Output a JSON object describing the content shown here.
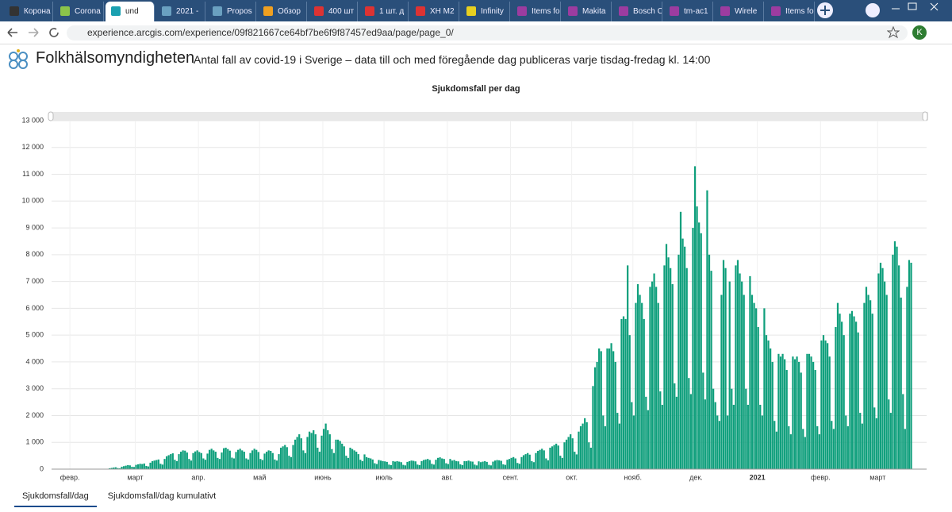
{
  "browser": {
    "tabs": [
      "Корона",
      "Corona",
      "und",
      "2021 -",
      "Propos",
      "Обзор",
      "400 шт",
      "1 шт. д",
      "XH M2",
      "Infinity",
      "Items fo",
      "Makita",
      "Bosch C",
      "tm-ac1",
      "Wirele",
      "Items fo"
    ],
    "url": "experience.arcgis.com/experience/09f821667ce64bf7be6f9f87457ed9aa/page/page_0/",
    "avatar": "K"
  },
  "header": {
    "title": "Folkhälsomyndigheten",
    "subtitle": "Antal fall av covid-19 i Sverige – data till och med föregående dag publiceras varje tisdag-fredag kl. 14:00"
  },
  "chart_data": {
    "type": "bar",
    "title": "Sjukdomsfall per dag",
    "color": "#0f9f7c",
    "grid": true,
    "values": [
      0,
      0,
      0,
      0,
      0,
      1,
      0,
      0,
      0,
      0,
      0,
      0,
      0,
      0,
      0,
      0,
      0,
      0,
      0,
      0,
      1,
      1,
      2,
      3,
      4,
      5,
      7,
      12,
      30,
      45,
      60,
      70,
      40,
      30,
      90,
      110,
      130,
      150,
      140,
      90,
      80,
      160,
      180,
      200,
      190,
      210,
      120,
      100,
      240,
      300,
      320,
      340,
      360,
      200,
      170,
      380,
      480,
      520,
      560,
      590,
      350,
      300,
      560,
      650,
      700,
      690,
      620,
      380,
      320,
      600,
      660,
      700,
      640,
      600,
      400,
      350,
      580,
      720,
      760,
      700,
      650,
      420,
      380,
      620,
      780,
      800,
      750,
      690,
      430,
      400,
      640,
      720,
      760,
      700,
      650,
      400,
      360,
      600,
      700,
      760,
      720,
      640,
      380,
      340,
      580,
      650,
      700,
      680,
      600,
      360,
      320,
      560,
      800,
      850,
      900,
      820,
      500,
      450,
      900,
      1100,
      1200,
      1300,
      1150,
      700,
      600,
      1200,
      1400,
      1350,
      1450,
      1300,
      800,
      650,
      1250,
      1500,
      1700,
      1450,
      1300,
      750,
      600,
      1100,
      1100,
      1050,
      950,
      850,
      500,
      420,
      800,
      750,
      700,
      650,
      560,
      350,
      300,
      550,
      450,
      420,
      400,
      360,
      220,
      190,
      340,
      320,
      300,
      290,
      270,
      170,
      150,
      300,
      280,
      300,
      280,
      260,
      160,
      140,
      270,
      300,
      320,
      310,
      290,
      170,
      150,
      300,
      340,
      360,
      380,
      340,
      200,
      170,
      350,
      420,
      440,
      400,
      380,
      220,
      190,
      380,
      320,
      340,
      300,
      290,
      180,
      150,
      300,
      300,
      320,
      290,
      280,
      170,
      140,
      290,
      260,
      280,
      300,
      270,
      160,
      140,
      280,
      320,
      340,
      330,
      310,
      180,
      160,
      350,
      380,
      420,
      450,
      400,
      230,
      200,
      450,
      520,
      560,
      600,
      540,
      300,
      260,
      600,
      680,
      720,
      760,
      700,
      400,
      330,
      800,
      850,
      900,
      950,
      880,
      500,
      420,
      1000,
      1100,
      1200,
      1300,
      1150,
      650,
      550,
      1400,
      1600,
      1700,
      1900,
      1750,
      1000,
      800,
      3100,
      3800,
      4000,
      4500,
      4400,
      2000,
      1600,
      4500,
      4500,
      4700,
      4400,
      4000,
      2100,
      1700,
      5600,
      5700,
      5600,
      7600,
      5000,
      2500,
      2000,
      6200,
      6900,
      6500,
      6200,
      5600,
      2700,
      2200,
      6800,
      7000,
      7300,
      6800,
      6200,
      2900,
      2400,
      7600,
      8400,
      7900,
      7500,
      6900,
      3200,
      2700,
      8000,
      9600,
      8600,
      8300,
      7500,
      3400,
      2800,
      9000,
      11300,
      9800,
      9200,
      8800,
      3600,
      2600,
      10400,
      8000,
      7400,
      3000,
      2500,
      2000,
      1800,
      6500,
      7800,
      7500,
      2000,
      7000,
      3000,
      2400,
      7600,
      7800,
      7300,
      7000,
      6500,
      3000,
      2400,
      7200,
      6500,
      6200,
      6000,
      5300,
      2400,
      2000,
      6000,
      5000,
      4800,
      4500,
      4000,
      1800,
      1400,
      4300,
      4200,
      4300,
      4100,
      3700,
      1600,
      1300,
      4200,
      4100,
      4200,
      4000,
      3600,
      1500,
      1200,
      4300,
      4300,
      4200,
      4000,
      3700,
      1600,
      1300,
      4800,
      5000,
      4800,
      4700,
      4200,
      1800,
      1500,
      5300,
      6200,
      5800,
      5500,
      5000,
      2000,
      1600,
      5800,
      5900,
      5700,
      5500,
      5100,
      2100,
      1700,
      6200,
      6800,
      6500,
      6300,
      5800,
      2300,
      1900,
      7300,
      7700,
      7500,
      7000,
      6500,
      2600,
      2100,
      8000,
      8500,
      8300,
      7600,
      6400,
      2800,
      1500,
      6800,
      7800,
      7700
    ],
    "xlim": [
      0,
      429
    ],
    "xticks": [
      {
        "value": 9,
        "label": "февр."
      },
      {
        "value": 41,
        "label": "март"
      },
      {
        "value": 72,
        "label": "апр."
      },
      {
        "value": 102,
        "label": "май"
      },
      {
        "value": 133,
        "label": "июнь"
      },
      {
        "value": 163,
        "label": "июль"
      },
      {
        "value": 194,
        "label": "авг."
      },
      {
        "value": 225,
        "label": "сент."
      },
      {
        "value": 255,
        "label": "окт."
      },
      {
        "value": 285,
        "label": "нояб."
      },
      {
        "value": 316,
        "label": "дек."
      },
      {
        "value": 346,
        "label": "2021"
      },
      {
        "value": 377,
        "label": "февр."
      },
      {
        "value": 405,
        "label": "март"
      }
    ],
    "ylim": [
      0,
      13000
    ],
    "yticks": [
      0,
      {
        "value": 1000,
        "label": "1 000"
      },
      {
        "value": 2000,
        "label": "2 000"
      },
      {
        "value": 3000,
        "label": "3 000"
      },
      {
        "value": 4000,
        "label": "4 000"
      },
      {
        "value": 5000,
        "label": "5 000"
      },
      {
        "value": 6000,
        "label": "6 000"
      },
      {
        "value": 7000,
        "label": "7 000"
      },
      {
        "value": 8000,
        "label": "8 000"
      },
      {
        "value": 9000,
        "label": "9 000"
      },
      {
        "value": 10000,
        "label": "10 000"
      },
      {
        "value": 11000,
        "label": "11 000"
      },
      {
        "value": 12000,
        "label": "12 000"
      },
      {
        "value": 13000,
        "label": "13 000"
      }
    ]
  },
  "view_tabs": [
    "Sjukdomsfall/dag",
    "Sjukdomsfall/dag kumulativt"
  ]
}
